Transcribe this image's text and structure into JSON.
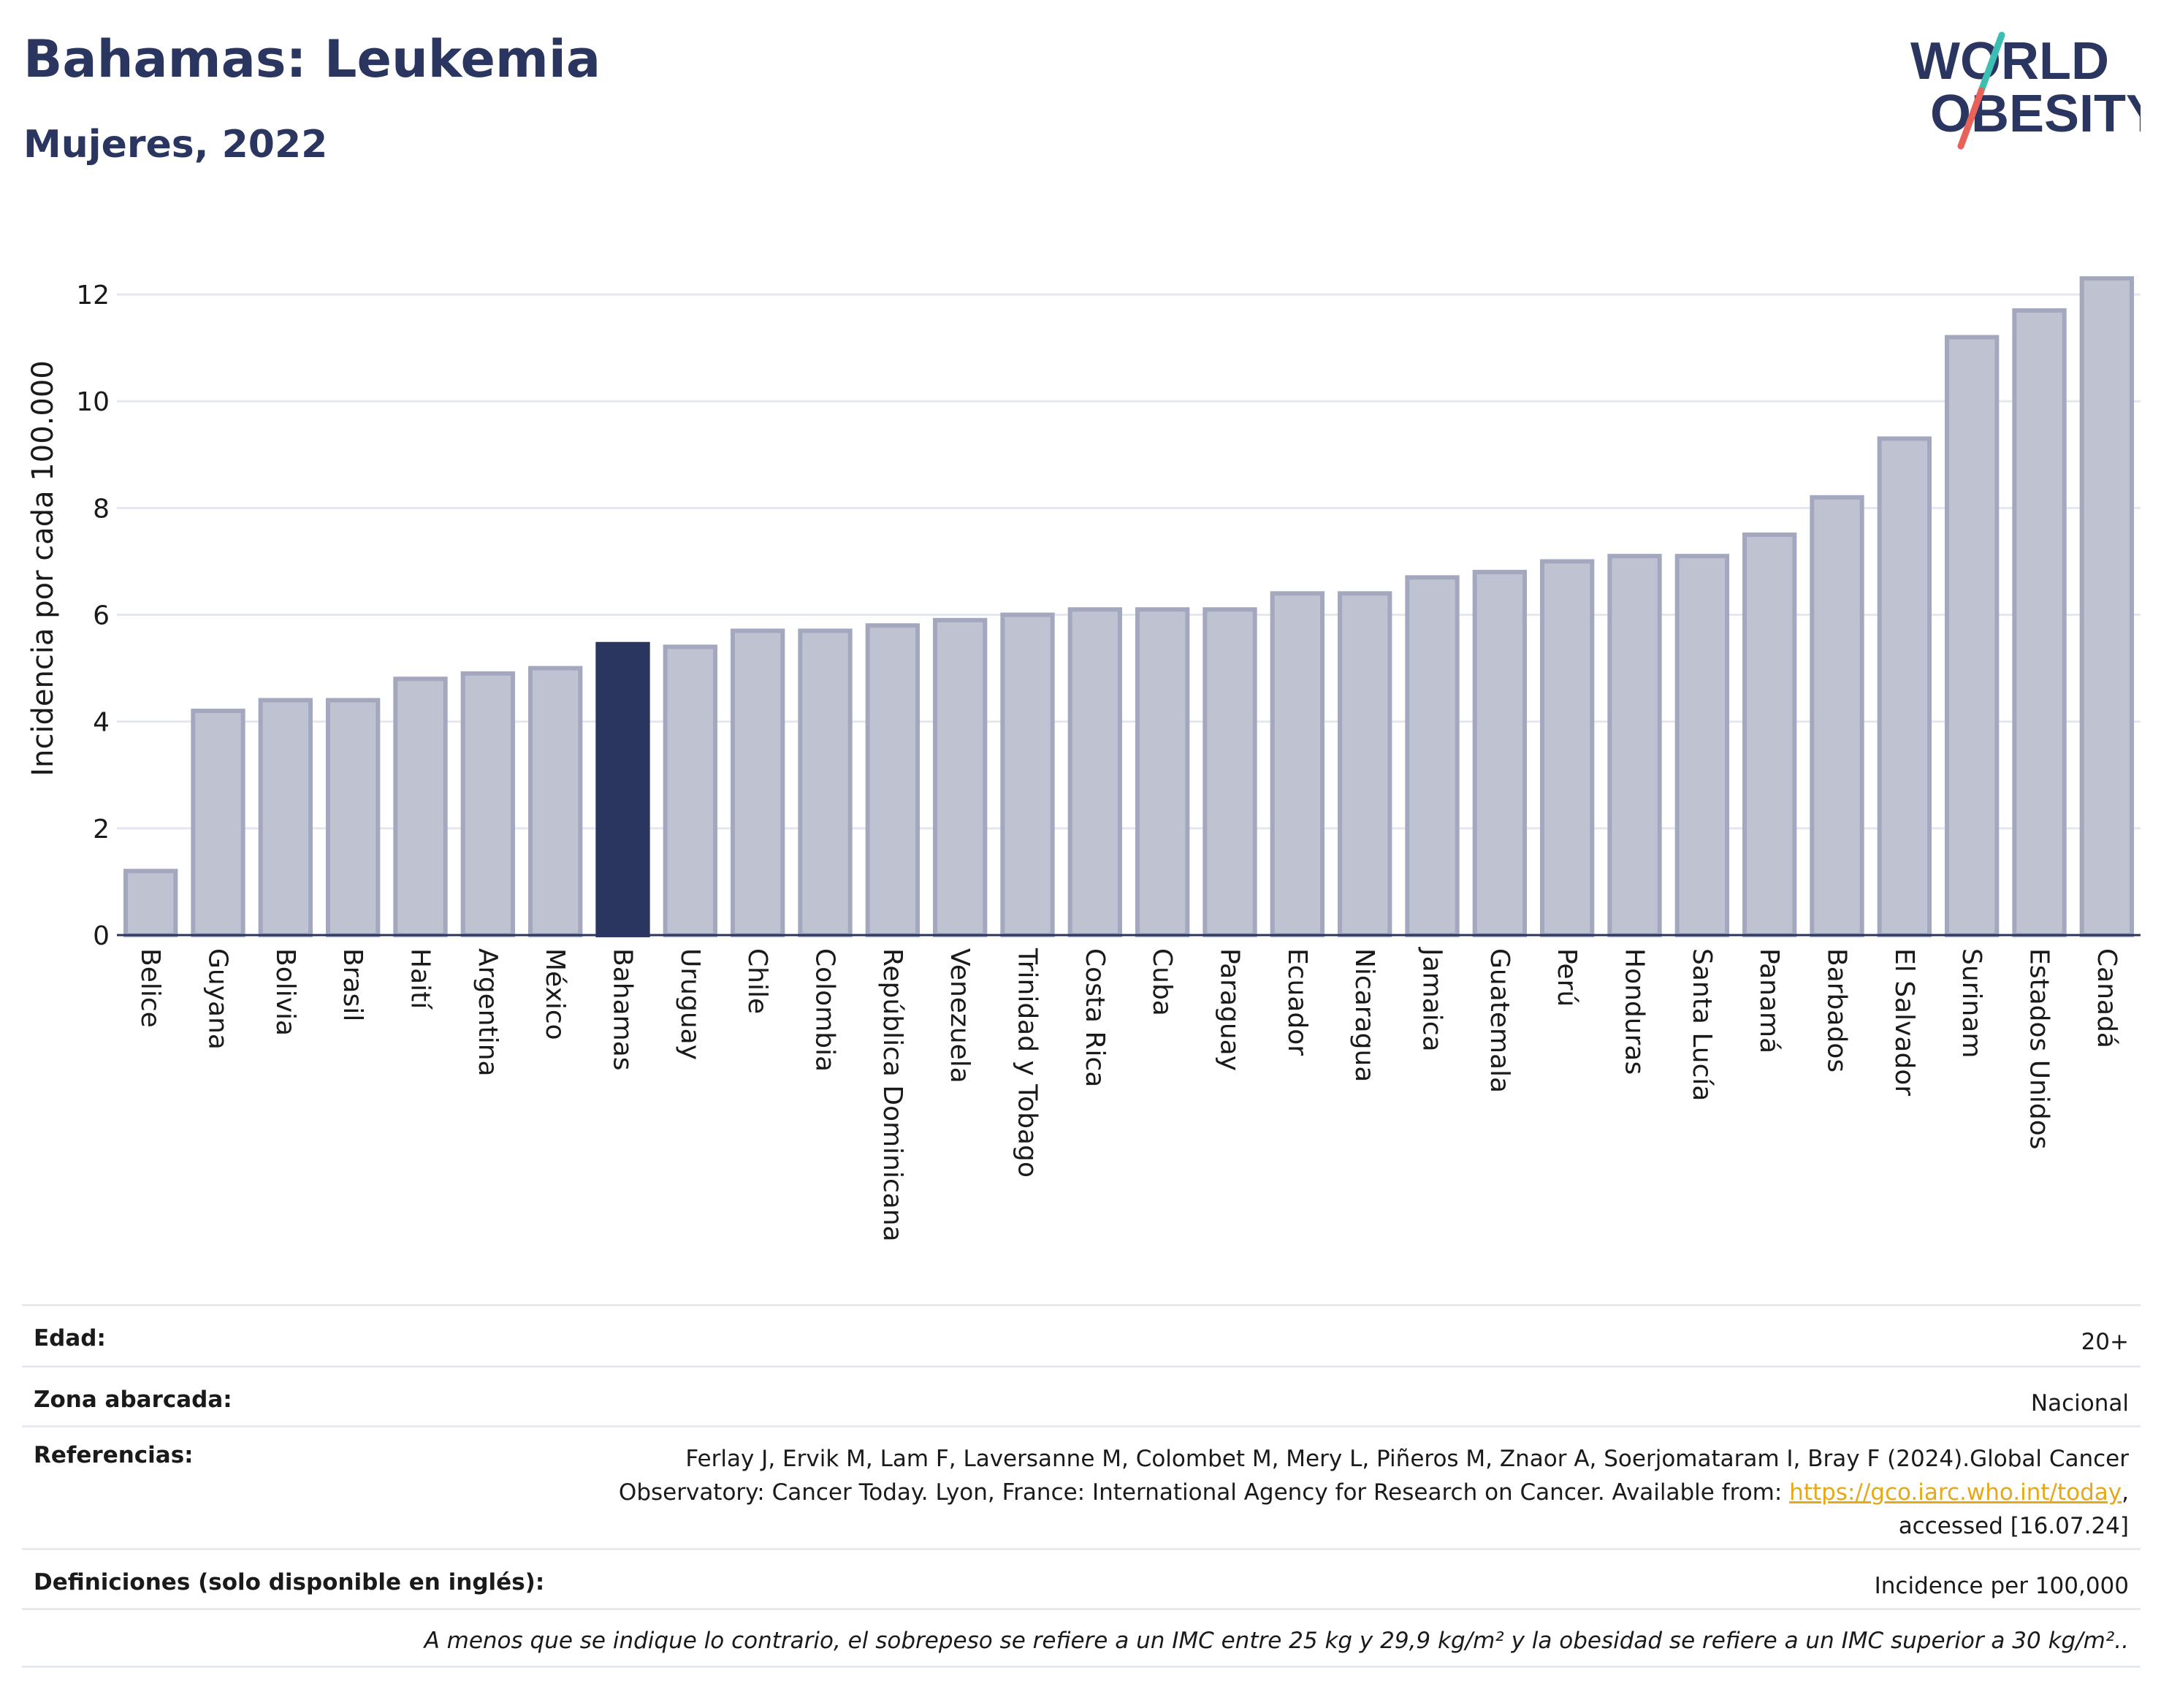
{
  "header": {
    "title": "Bahamas: Leukemia",
    "subtitle": "Mujeres, 2022",
    "logo_line1": "WORLD",
    "logo_line2": "OBESITY"
  },
  "colors": {
    "title": "#2a3560",
    "bar": "#bfc3d1",
    "bar_border": "#a3a8bf",
    "highlight": "#2a3560",
    "link": "#e6a817",
    "logo_red": "#e8625a",
    "logo_teal": "#3bbfb3"
  },
  "chart_data": {
    "type": "bar",
    "ylabel": "Incidencia por cada 100.000",
    "ylim": [
      0,
      13
    ],
    "yticks": [
      0,
      2,
      4,
      6,
      8,
      10,
      12
    ],
    "grid": true,
    "highlight": "Bahamas",
    "categories": [
      "Belice",
      "Guyana",
      "Bolivia",
      "Brasil",
      "Haití",
      "Argentina",
      "México",
      "Bahamas",
      "Uruguay",
      "Chile",
      "Colombia",
      "República Dominicana",
      "Venezuela",
      "Trinidad y Tobago",
      "Costa Rica",
      "Cuba",
      "Paraguay",
      "Ecuador",
      "Nicaragua",
      "Jamaica",
      "Guatemala",
      "Perú",
      "Honduras",
      "Santa Lucía",
      "Panamá",
      "Barbados",
      "El Salvador",
      "Surinam",
      "Estados Unidos",
      "Canadá"
    ],
    "values": [
      1.2,
      4.2,
      4.4,
      4.4,
      4.8,
      4.9,
      5.0,
      5.45,
      5.4,
      5.7,
      5.7,
      5.8,
      5.9,
      6.0,
      6.1,
      6.1,
      6.1,
      6.4,
      6.4,
      6.7,
      6.8,
      7.0,
      7.1,
      7.1,
      7.5,
      8.2,
      9.3,
      11.2,
      11.7,
      12.3
    ]
  },
  "meta": {
    "age_label": "Edad:",
    "age_value": "20+",
    "area_label": "Zona abarcada:",
    "area_value": "Nacional",
    "ref_label": "Referencias:",
    "ref_line1": "Ferlay J, Ervik M, Lam F, Laversanne M, Colombet M, Mery L, Piñeros M, Znaor A, Soerjomataram I, Bray F (2024).Global Cancer",
    "ref_line2": "Observatory: Cancer Today. Lyon, France: International Agency for Research on Cancer. Available from: ",
    "ref_link": "https://gco.iarc.who.int/today",
    "ref_line2_end": ",",
    "ref_line3": "accessed [16.07.24]",
    "def_label": "Definiciones (solo disponible en inglés):",
    "def_value": "Incidence per 100,000",
    "note": "A menos que se indique lo contrario, el sobrepeso se refiere a un IMC entre 25 kg y 29,9 kg/m² y la obesidad se refiere a un IMC superior a 30 kg/m².."
  }
}
